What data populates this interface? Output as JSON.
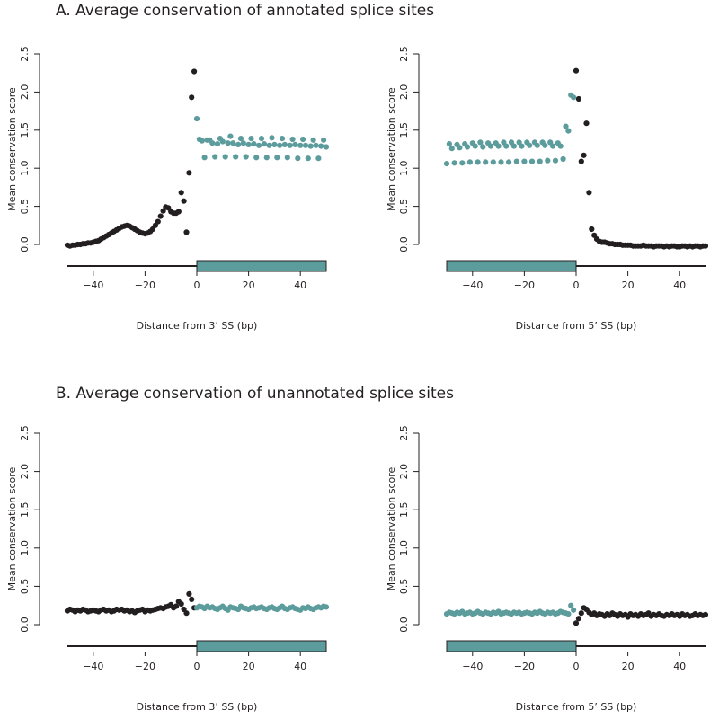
{
  "titles": {
    "a": "A. Average conservation of annotated splice sites",
    "b": "B. Average conservation of unannotated splice sites"
  },
  "colors": {
    "black": "#231f20",
    "teal": "#5d9c9c"
  },
  "chart_data": [
    {
      "id": "A-3SS",
      "type": "scatter",
      "title": "",
      "xlabel": "Distance from 3’ SS (bp)",
      "ylabel": "Mean conservation score",
      "xlim": [
        -50,
        50
      ],
      "ylim": [
        0,
        2.5
      ],
      "xticks": [
        -40,
        -20,
        0,
        20,
        40
      ],
      "yticks": [
        0.0,
        0.5,
        1.0,
        1.5,
        2.0,
        2.5
      ],
      "exon_side": "right",
      "intron_values": [
        -0.01,
        -0.02,
        -0.01,
        -0.01,
        0,
        0,
        0.01,
        0.01,
        0.02,
        0.02,
        0.03,
        0.04,
        0.05,
        0.07,
        0.09,
        0.11,
        0.13,
        0.15,
        0.17,
        0.19,
        0.21,
        0.23,
        0.24,
        0.25,
        0.24,
        0.22,
        0.2,
        0.18,
        0.16,
        0.15,
        0.14,
        0.15,
        0.17,
        0.2,
        0.25,
        0.3,
        0.37,
        0.44,
        0.49,
        0.48,
        0.43,
        0.41,
        0.41,
        0.43,
        0.68,
        0.57,
        0.16,
        0.94,
        1.93,
        2.27
      ],
      "exon_values": [
        1.65,
        1.38,
        1.36,
        1.14,
        1.37,
        1.37,
        1.33,
        1.15,
        1.32,
        1.39,
        1.35,
        1.15,
        1.33,
        1.42,
        1.33,
        1.15,
        1.31,
        1.39,
        1.33,
        1.15,
        1.31,
        1.39,
        1.32,
        1.14,
        1.3,
        1.39,
        1.32,
        1.14,
        1.3,
        1.4,
        1.31,
        1.14,
        1.3,
        1.39,
        1.31,
        1.14,
        1.3,
        1.38,
        1.31,
        1.13,
        1.3,
        1.38,
        1.3,
        1.13,
        1.29,
        1.37,
        1.3,
        1.13,
        1.29,
        1.37,
        1.28
      ]
    },
    {
      "id": "A-5SS",
      "type": "scatter",
      "title": "",
      "xlabel": "Distance from 5’ SS (bp)",
      "ylabel": "Mean conservation score",
      "xlim": [
        -50,
        50
      ],
      "ylim": [
        0,
        2.5
      ],
      "xticks": [
        -40,
        -20,
        0,
        20,
        40
      ],
      "yticks": [
        0.0,
        0.5,
        1.0,
        1.5,
        2.0,
        2.5
      ],
      "exon_side": "left",
      "exon_values": [
        1.06,
        1.32,
        1.26,
        1.07,
        1.31,
        1.27,
        1.07,
        1.32,
        1.28,
        1.08,
        1.33,
        1.29,
        1.08,
        1.34,
        1.28,
        1.08,
        1.33,
        1.29,
        1.08,
        1.33,
        1.29,
        1.08,
        1.34,
        1.29,
        1.08,
        1.34,
        1.29,
        1.09,
        1.34,
        1.29,
        1.09,
        1.34,
        1.3,
        1.09,
        1.34,
        1.3,
        1.09,
        1.34,
        1.3,
        1.1,
        1.34,
        1.29,
        1.1,
        1.33,
        1.29,
        1.12,
        1.55,
        1.49,
        1.96,
        1.93
      ],
      "intron_values": [
        2.28,
        1.91,
        1.09,
        1.17,
        1.59,
        0.68,
        0.2,
        0.12,
        0.07,
        0.04,
        0.03,
        0.03,
        0.02,
        0.01,
        0.01,
        0,
        0,
        0,
        -0.01,
        -0.01,
        -0.01,
        -0.01,
        -0.02,
        -0.02,
        -0.02,
        -0.02,
        -0.01,
        -0.02,
        -0.02,
        -0.02,
        -0.03,
        -0.02,
        -0.02,
        -0.02,
        -0.03,
        -0.02,
        -0.03,
        -0.02,
        -0.02,
        -0.03,
        -0.03,
        -0.02,
        -0.02,
        -0.03,
        -0.02,
        -0.03,
        -0.02,
        -0.02,
        -0.03,
        -0.02,
        -0.02
      ]
    },
    {
      "id": "B-3SS",
      "type": "scatter",
      "title": "",
      "xlabel": "Distance from 3’ SS (bp)",
      "ylabel": "Mean conservation score",
      "xlim": [
        -50,
        50
      ],
      "ylim": [
        0,
        2.5
      ],
      "xticks": [
        -40,
        -20,
        0,
        20,
        40
      ],
      "yticks": [
        0.0,
        0.5,
        1.0,
        1.5,
        2.0,
        2.5
      ],
      "exon_side": "right",
      "intron_values": [
        0.18,
        0.2,
        0.19,
        0.17,
        0.19,
        0.18,
        0.2,
        0.19,
        0.17,
        0.18,
        0.19,
        0.18,
        0.17,
        0.19,
        0.2,
        0.18,
        0.19,
        0.17,
        0.18,
        0.2,
        0.19,
        0.2,
        0.18,
        0.19,
        0.17,
        0.18,
        0.16,
        0.18,
        0.19,
        0.2,
        0.17,
        0.19,
        0.18,
        0.19,
        0.2,
        0.21,
        0.22,
        0.21,
        0.23,
        0.24,
        0.26,
        0.22,
        0.24,
        0.3,
        0.27,
        0.2,
        0.15,
        0.4,
        0.33,
        0.22
      ],
      "exon_values": [
        0.22,
        0.24,
        0.23,
        0.21,
        0.24,
        0.22,
        0.23,
        0.21,
        0.2,
        0.22,
        0.24,
        0.21,
        0.19,
        0.23,
        0.22,
        0.21,
        0.2,
        0.24,
        0.22,
        0.21,
        0.2,
        0.22,
        0.23,
        0.21,
        0.22,
        0.23,
        0.21,
        0.2,
        0.22,
        0.23,
        0.21,
        0.2,
        0.22,
        0.24,
        0.21,
        0.2,
        0.22,
        0.23,
        0.21,
        0.2,
        0.19,
        0.22,
        0.21,
        0.23,
        0.21,
        0.2,
        0.22,
        0.23,
        0.22,
        0.24,
        0.23
      ]
    },
    {
      "id": "B-5SS",
      "type": "scatter",
      "title": "",
      "xlabel": "Distance from 5’ SS (bp)",
      "ylabel": "Mean conservation score",
      "xlim": [
        -50,
        50
      ],
      "ylim": [
        0,
        2.5
      ],
      "xticks": [
        -40,
        -20,
        0,
        20,
        40
      ],
      "yticks": [
        0.0,
        0.5,
        1.0,
        1.5,
        2.0,
        2.5
      ],
      "exon_side": "left",
      "exon_values": [
        0.14,
        0.16,
        0.15,
        0.14,
        0.16,
        0.15,
        0.17,
        0.14,
        0.15,
        0.16,
        0.14,
        0.15,
        0.17,
        0.15,
        0.14,
        0.16,
        0.15,
        0.14,
        0.16,
        0.15,
        0.17,
        0.14,
        0.15,
        0.16,
        0.15,
        0.14,
        0.16,
        0.15,
        0.16,
        0.14,
        0.15,
        0.16,
        0.15,
        0.14,
        0.16,
        0.15,
        0.17,
        0.15,
        0.14,
        0.16,
        0.15,
        0.16,
        0.14,
        0.15,
        0.17,
        0.16,
        0.15,
        0.14,
        0.25,
        0.19
      ],
      "intron_values": [
        0.02,
        0.08,
        0.15,
        0.22,
        0.2,
        0.16,
        0.13,
        0.15,
        0.12,
        0.14,
        0.13,
        0.11,
        0.14,
        0.12,
        0.15,
        0.13,
        0.11,
        0.14,
        0.12,
        0.13,
        0.1,
        0.14,
        0.12,
        0.13,
        0.11,
        0.14,
        0.12,
        0.13,
        0.15,
        0.11,
        0.13,
        0.12,
        0.14,
        0.12,
        0.11,
        0.13,
        0.12,
        0.14,
        0.12,
        0.13,
        0.11,
        0.14,
        0.12,
        0.13,
        0.11,
        0.12,
        0.14,
        0.12,
        0.13,
        0.12,
        0.13
      ]
    }
  ]
}
